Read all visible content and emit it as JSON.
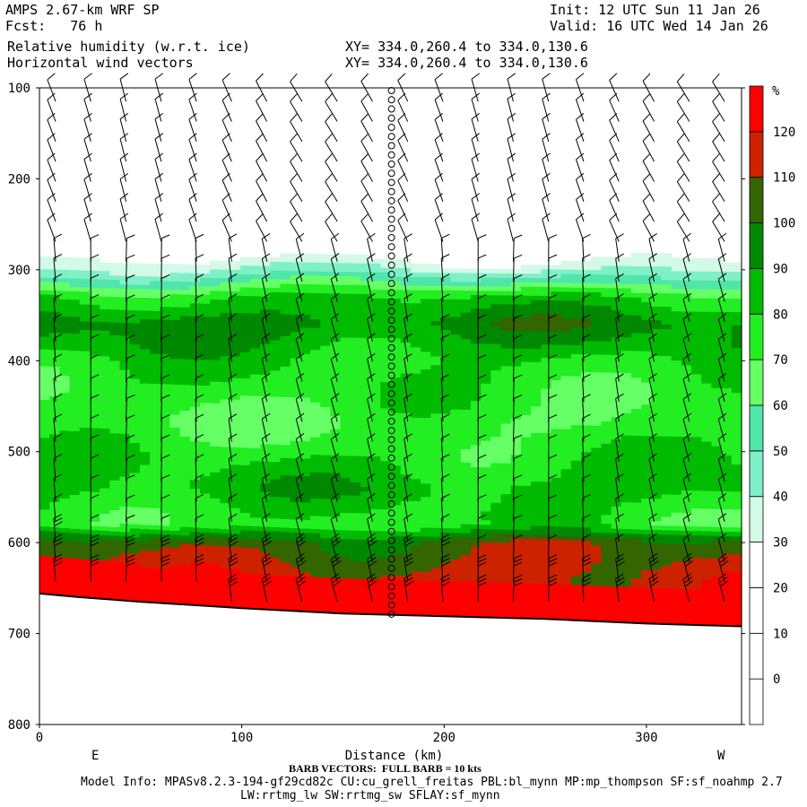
{
  "header": {
    "model": "AMPS 2.67-km WRF SP",
    "init": "Init: 12 UTC Sun 11 Jan 26",
    "fcst": "Fcst:   76 h",
    "valid": "Valid: 16 UTC Wed 14 Jan 26",
    "field1": "Relative humidity (w.r.t. ice)",
    "field2": "Horizontal wind vectors",
    "xy1": "XY= 334.0,260.4 to 334.0,130.6",
    "xy2": "XY= 334.0,260.4 to 334.0,130.6"
  },
  "footer": {
    "barb_note": "BARB VECTORS:  FULL BARB = 10 kts",
    "model_info": "Model Info: MPASv8.2.3-194-gf29cd82c CU:cu_grell_freitas PBL:bl_mynn MP:mp_thompson SF:sf_noahmp 2.7",
    "model_info2": "LW:rrtmg_lw SW:rrtmg_sw SFLAY:sf_mynn"
  },
  "chart_data": {
    "type": "heatmap",
    "title": "Relative humidity (w.r.t. ice)",
    "xlabel": "Distance (km)",
    "ylabel": "",
    "x_ticks": [
      0,
      100,
      200,
      300
    ],
    "y_ticks": [
      100,
      200,
      300,
      400,
      500,
      600,
      700,
      800
    ],
    "xlim": [
      0,
      347
    ],
    "ylim": [
      800,
      100
    ],
    "x_end_labels": {
      "left": "E",
      "right": "W"
    },
    "colorbar": {
      "unit": "%",
      "levels": [
        0,
        10,
        20,
        30,
        40,
        50,
        60,
        70,
        80,
        90,
        100,
        110,
        120
      ],
      "colors": [
        "#ffffff",
        "#ffffff",
        "#ffffff",
        "#ffffff",
        "#d2fae6",
        "#7ff0c8",
        "#50e6aa",
        "#66ff66",
        "#22ee22",
        "#00bb00",
        "#008800",
        "#336600",
        "#cc2200",
        "#ff0000"
      ]
    },
    "rh_profile_pressure": [
      100,
      280,
      300,
      330,
      360,
      400,
      470,
      540,
      580,
      600,
      640,
      690
    ],
    "rh_profile_value": [
      10,
      20,
      40,
      80,
      95,
      80,
      70,
      85,
      75,
      105,
      115,
      125
    ],
    "terrain_pressure": {
      "x": [
        0,
        20,
        50,
        100,
        150,
        200,
        250,
        300,
        347
      ],
      "p": [
        656,
        660,
        665,
        672,
        678,
        681,
        684,
        689,
        692
      ]
    },
    "calm_column_x": 174
  }
}
